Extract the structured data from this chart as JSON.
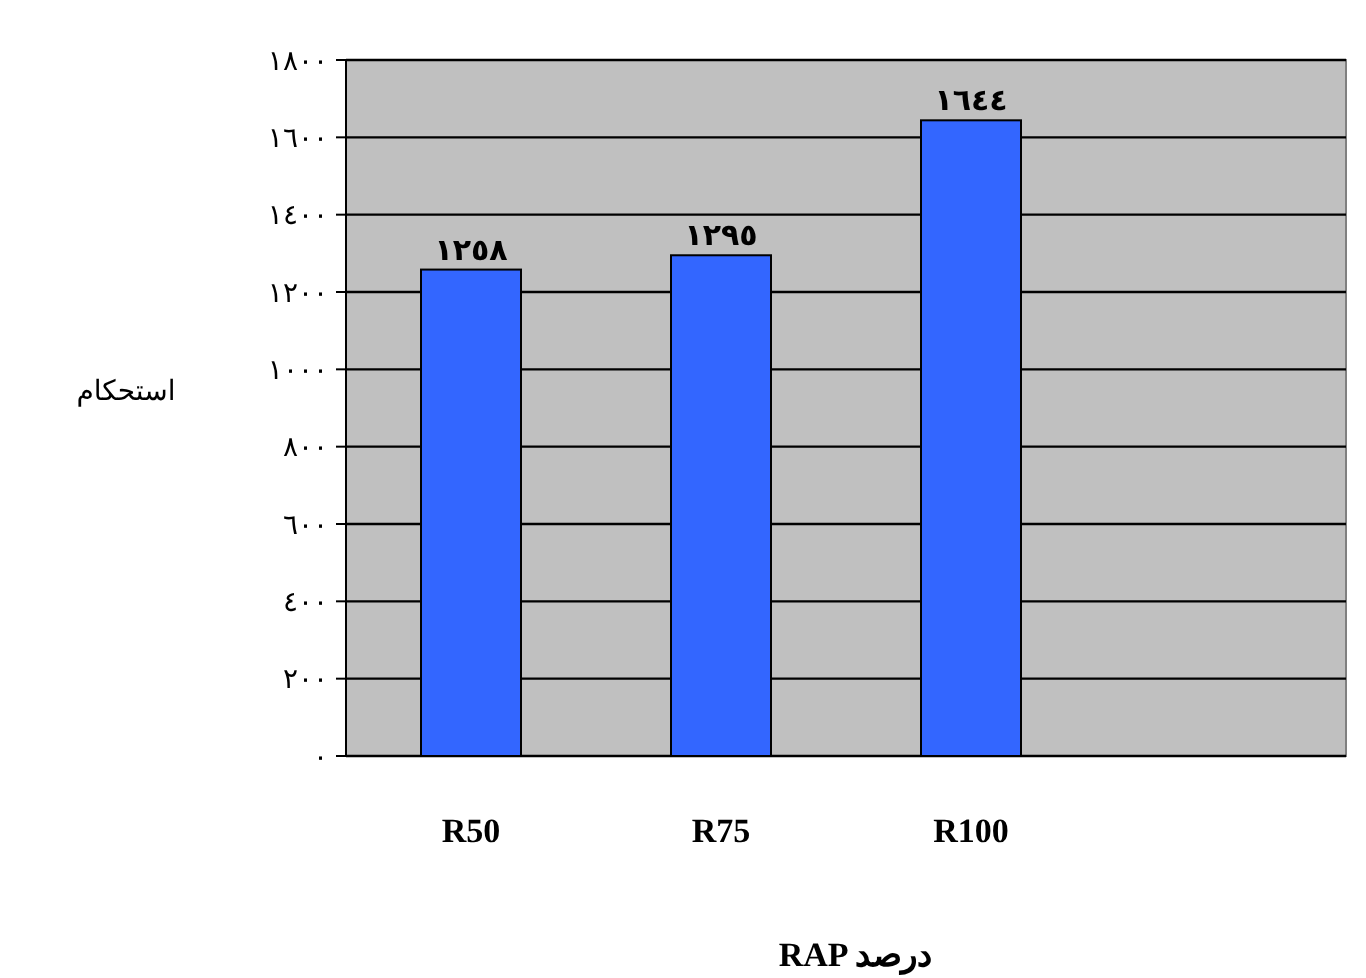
{
  "chart_data": {
    "type": "bar",
    "xlabel": "RAP درصد",
    "ylabel": "استحکام",
    "categories": [
      "R50",
      "R75",
      "R100"
    ],
    "values": [
      1258,
      1295,
      1644
    ],
    "color": "#3366ff",
    "value_labels": [
      "١٢٥٨",
      "١٢٩٥",
      "١٦٤٤"
    ],
    "ylim": [
      0,
      1800
    ],
    "yticks": [
      {
        "value": 0,
        "label": "٠"
      },
      {
        "value": 200,
        "label": "٢٠٠"
      },
      {
        "value": 400,
        "label": "٤٠٠"
      },
      {
        "value": 600,
        "label": "٦٠٠"
      },
      {
        "value": 800,
        "label": "٨٠٠"
      },
      {
        "value": 1000,
        "label": "١٠٠٠"
      },
      {
        "value": 1200,
        "label": "١٢٠٠"
      },
      {
        "value": 1400,
        "label": "١٤٠٠"
      },
      {
        "value": 1600,
        "label": "١٦٠٠"
      },
      {
        "value": 1800,
        "label": "١٨٠٠"
      }
    ],
    "grid": "y"
  }
}
